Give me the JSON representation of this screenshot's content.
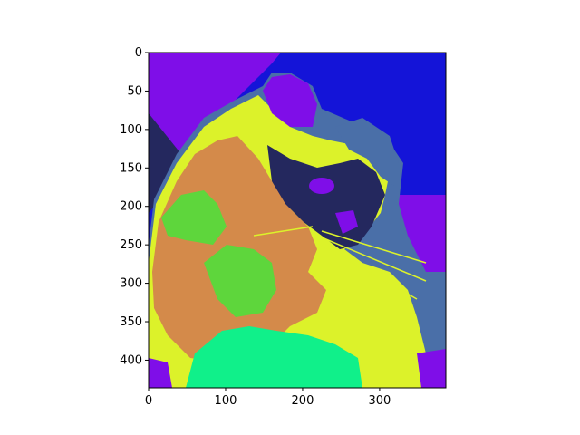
{
  "chart_data": {
    "type": "heatmap",
    "subject": "posterized cat photograph",
    "title": "",
    "xlabel": "",
    "ylabel": "",
    "xlim": [
      0,
      386
    ],
    "ylim": [
      436,
      0
    ],
    "x_ticks": [
      0,
      100,
      200,
      300
    ],
    "y_ticks": [
      0,
      50,
      100,
      150,
      200,
      250,
      300,
      350,
      400
    ],
    "grid": false,
    "legend": "none",
    "palette": {
      "navy": "#24285e",
      "blue": "#1414d8",
      "purple": "#7f0ee8",
      "slate_blue": "#4a6fa8",
      "yellow": "#dcf22a",
      "orange": "#d48a4a",
      "green": "#5ed63c",
      "mint": "#10f08a"
    }
  }
}
